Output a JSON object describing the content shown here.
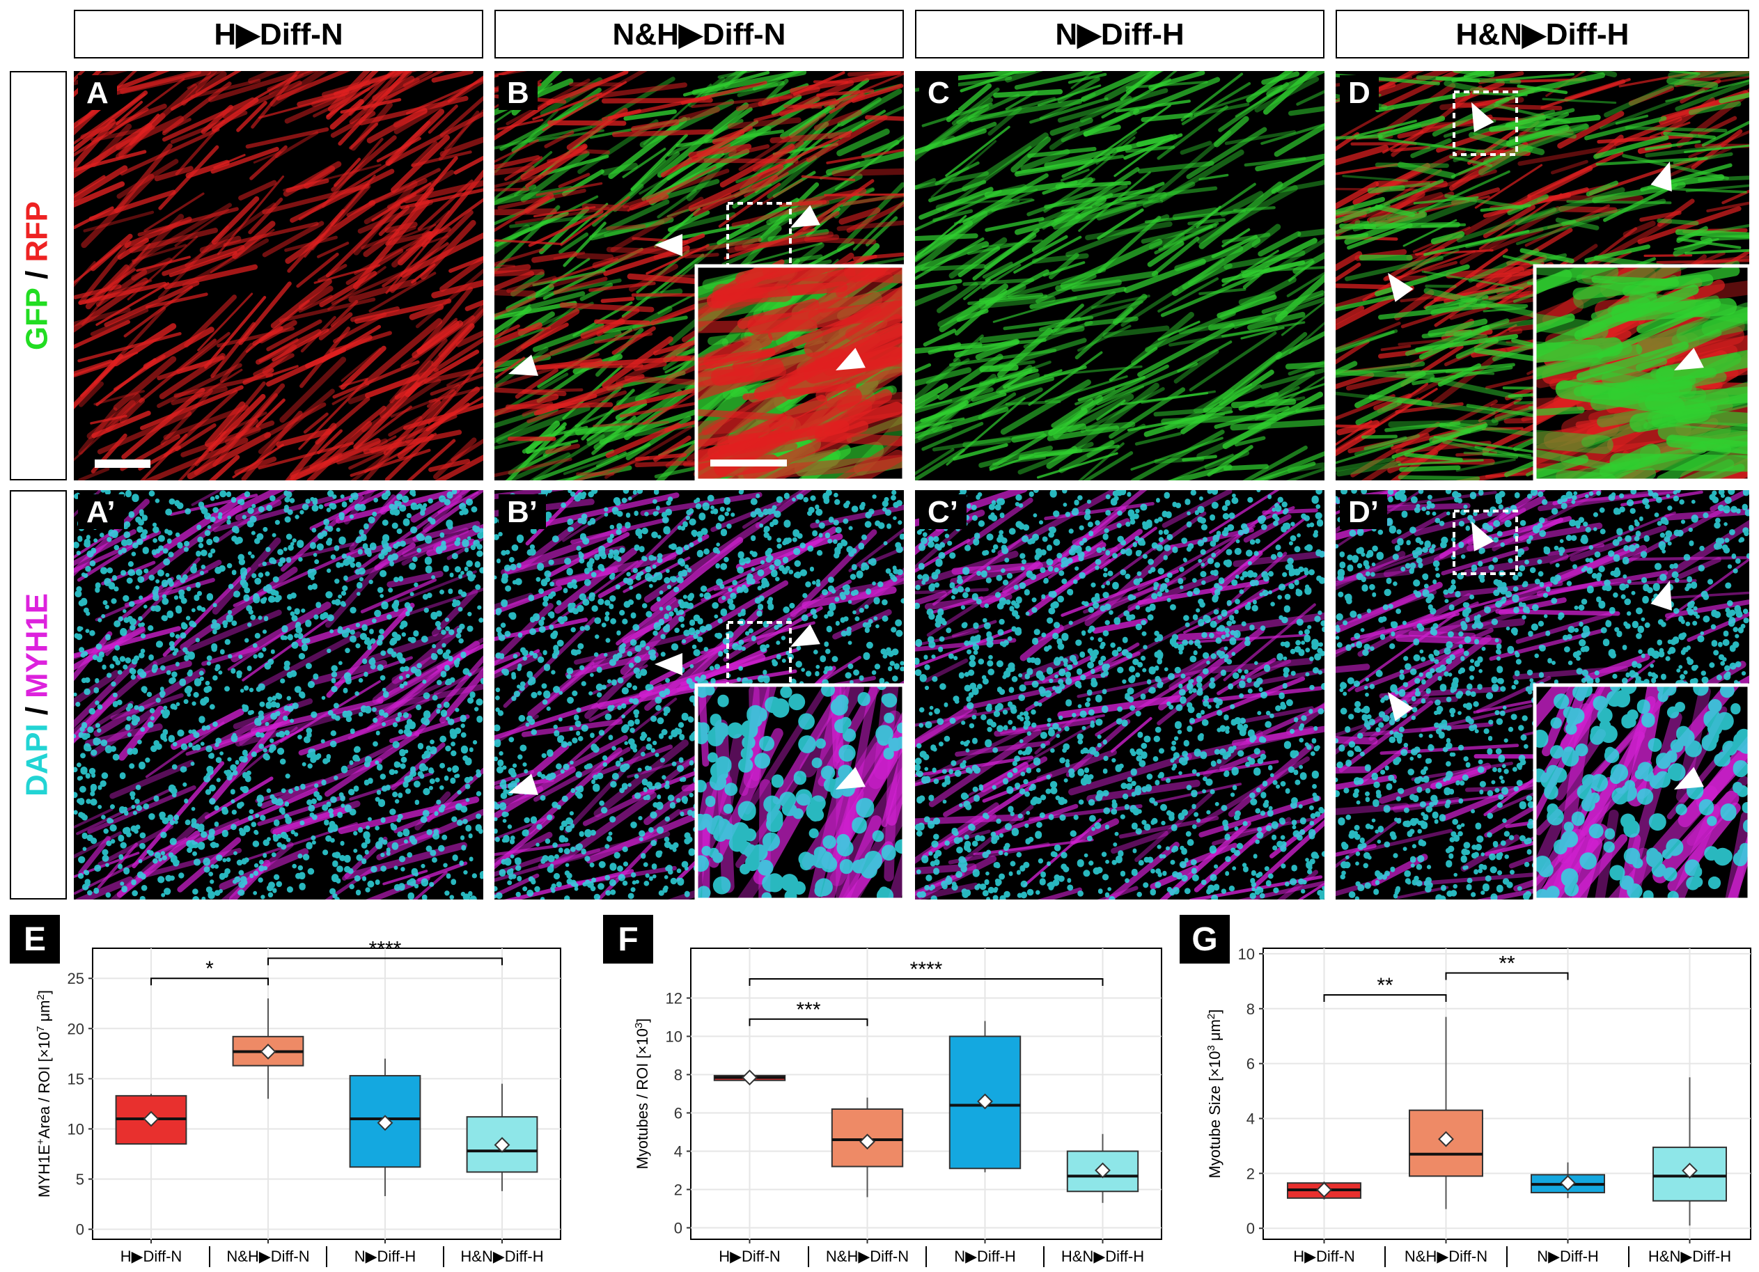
{
  "headers": [
    "H▶Diff-N",
    "N&H▶Diff-N",
    "N▶Diff-H",
    "H&N▶Diff-H"
  ],
  "row_labels": {
    "row1": [
      {
        "text": "GFP",
        "color": "#22dd22"
      },
      {
        "text": " / ",
        "color": "#000000"
      },
      {
        "text": "RFP",
        "color": "#ee2222"
      }
    ],
    "row2": [
      {
        "text": "DAPI",
        "color": "#22d4d4"
      },
      {
        "text": " / ",
        "color": "#000000"
      },
      {
        "text": "MYH1E",
        "color": "#dd22dd"
      }
    ]
  },
  "panel_labels": {
    "top": [
      "A",
      "B",
      "C",
      "D"
    ],
    "bottom": [
      "A’",
      "B’",
      "C’",
      "D’"
    ]
  },
  "image_panels": {
    "top": [
      {
        "channels": [
          "red"
        ],
        "inset": false,
        "dashed_box": false
      },
      {
        "channels": [
          "green",
          "red"
        ],
        "inset": true,
        "dashed_box": true
      },
      {
        "channels": [
          "green"
        ],
        "inset": false,
        "dashed_box": false
      },
      {
        "channels": [
          "red",
          "green"
        ],
        "inset": true,
        "dashed_box": true
      }
    ],
    "bottom": [
      {
        "channels": [
          "cyan",
          "magenta"
        ],
        "inset": false,
        "dashed_box": false
      },
      {
        "channels": [
          "cyan",
          "magenta"
        ],
        "inset": true,
        "dashed_box": true
      },
      {
        "channels": [
          "cyan",
          "magenta"
        ],
        "inset": false,
        "dashed_box": false
      },
      {
        "channels": [
          "cyan",
          "magenta"
        ],
        "inset": true,
        "dashed_box": true
      }
    ]
  },
  "colors": {
    "red": "#e02020",
    "green": "#30d030",
    "cyan": "#30d8e0",
    "magenta": "#d020d0"
  },
  "chart_data": [
    {
      "label": "E",
      "type": "box",
      "categories": [
        "H▶Diff-N",
        "N&H▶Diff-N",
        "N▶Diff-H",
        "H&N▶Diff-H"
      ],
      "ylabel_main": "MYH1E",
      "ylabel_sup": "+",
      "ylabel_rest": "Area / ROI [×10",
      "ylabel_sup2": "7",
      "ylabel_end": " μm",
      "ylabel_sup3": "2",
      "ylabel_close": "]",
      "ylim": [
        -1,
        28
      ],
      "yticks": [
        0,
        5,
        10,
        15,
        20,
        25
      ],
      "colors": [
        "#e8302e",
        "#ee8a66",
        "#14a8e0",
        "#8ee6e8"
      ],
      "boxes": [
        {
          "min": 8.5,
          "q1": 8.5,
          "median": 11.0,
          "q3": 13.3,
          "max": 13.5,
          "mean": 11.0
        },
        {
          "min": 13.0,
          "q1": 16.3,
          "median": 17.7,
          "q3": 19.2,
          "max": 23.0,
          "mean": 17.7
        },
        {
          "min": 3.3,
          "q1": 6.2,
          "median": 11.0,
          "q3": 15.3,
          "max": 17.0,
          "mean": 10.6
        },
        {
          "min": 3.8,
          "q1": 5.7,
          "median": 7.8,
          "q3": 11.2,
          "max": 14.5,
          "mean": 8.4
        }
      ],
      "significance": [
        {
          "from": 0,
          "to": 1,
          "y": 25.0,
          "label": "*"
        },
        {
          "from": 1,
          "to": 3,
          "y": 27.0,
          "label": "****"
        }
      ]
    },
    {
      "label": "F",
      "type": "box",
      "categories": [
        "H▶Diff-N",
        "N&H▶Diff-N",
        "N▶Diff-H",
        "H&N▶Diff-H"
      ],
      "ylabel_main": "Myotubes / ROI [×10",
      "ylabel_sup": "3",
      "ylabel_rest": "]",
      "ylim": [
        -0.6,
        14.6
      ],
      "yticks": [
        0,
        2,
        4,
        6,
        8,
        10,
        12
      ],
      "colors": [
        "#e8302e",
        "#ee8a66",
        "#14a8e0",
        "#8ee6e8"
      ],
      "boxes": [
        {
          "min": 7.7,
          "q1": 7.7,
          "median": 7.85,
          "q3": 7.95,
          "max": 7.95,
          "mean": 7.85
        },
        {
          "min": 1.6,
          "q1": 3.2,
          "median": 4.6,
          "q3": 6.2,
          "max": 6.8,
          "mean": 4.5
        },
        {
          "min": 2.9,
          "q1": 3.1,
          "median": 6.4,
          "q3": 10.0,
          "max": 10.8,
          "mean": 6.6
        },
        {
          "min": 1.3,
          "q1": 1.9,
          "median": 2.7,
          "q3": 4.0,
          "max": 4.9,
          "mean": 3.0
        }
      ],
      "significance": [
        {
          "from": 0,
          "to": 1,
          "y": 10.9,
          "label": "***"
        },
        {
          "from": 0,
          "to": 3,
          "y": 13.0,
          "label": "****"
        }
      ]
    },
    {
      "label": "G",
      "type": "box",
      "categories": [
        "H▶Diff-N",
        "N&H▶Diff-N",
        "N▶Diff-H",
        "H&N▶Diff-H"
      ],
      "ylabel_main": "Myotube Size [×10",
      "ylabel_sup": "3",
      "ylabel_rest": " μm",
      "ylabel_sup2": "2",
      "ylabel_end": "]",
      "ylim": [
        -0.4,
        10.2
      ],
      "yticks": [
        0,
        2,
        4,
        6,
        8,
        10
      ],
      "colors": [
        "#e8302e",
        "#ee8a66",
        "#14a8e0",
        "#8ee6e8"
      ],
      "boxes": [
        {
          "min": 1.05,
          "q1": 1.1,
          "median": 1.4,
          "q3": 1.65,
          "max": 1.7,
          "mean": 1.4
        },
        {
          "min": 0.7,
          "q1": 1.9,
          "median": 2.7,
          "q3": 4.3,
          "max": 7.7,
          "mean": 3.25
        },
        {
          "min": 1.1,
          "q1": 1.3,
          "median": 1.6,
          "q3": 1.95,
          "max": 2.4,
          "mean": 1.65
        },
        {
          "min": 0.1,
          "q1": 1.0,
          "median": 1.9,
          "q3": 2.95,
          "max": 5.5,
          "mean": 2.1
        }
      ],
      "significance": [
        {
          "from": 0,
          "to": 1,
          "y": 8.5,
          "label": "**"
        },
        {
          "from": 1,
          "to": 2,
          "y": 9.3,
          "label": "**"
        }
      ]
    }
  ]
}
